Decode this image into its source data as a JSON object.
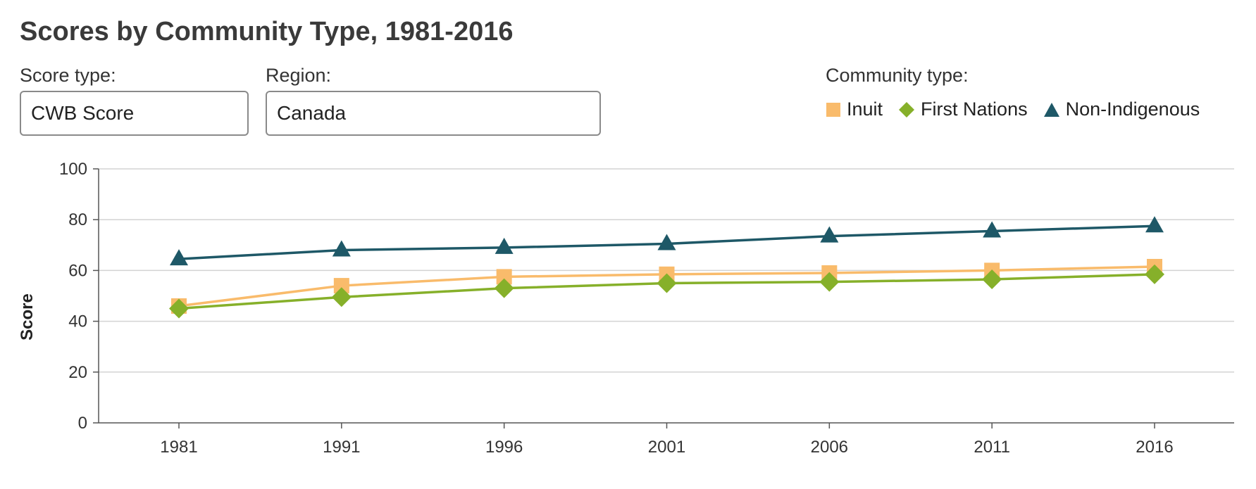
{
  "title": "Scores by Community Type, 1981-2016",
  "controls": {
    "score_type": {
      "label": "Score type:",
      "value": "CWB Score"
    },
    "region": {
      "label": "Region:",
      "value": "Canada"
    }
  },
  "legend": {
    "label": "Community type:"
  },
  "colors": {
    "Inuit": "#f9bb6b",
    "First Nations": "#86b02a",
    "Non-Indigenous": "#1e5867",
    "grid": "#d3d3d3",
    "axis": "#555555"
  },
  "chart_data": {
    "type": "line",
    "title": "Scores by Community Type, 1981-2016",
    "xlabel": "",
    "ylabel": "Score",
    "categories": [
      "1981",
      "1991",
      "1996",
      "2001",
      "2006",
      "2011",
      "2016"
    ],
    "ylim": [
      0,
      100
    ],
    "yticks": [
      0,
      20,
      40,
      60,
      80,
      100
    ],
    "grid": true,
    "legend_position": "top-right",
    "series": [
      {
        "name": "Inuit",
        "marker": "square",
        "values": [
          46,
          54,
          57.5,
          58.5,
          59,
          60,
          61.5
        ]
      },
      {
        "name": "First Nations",
        "marker": "diamond",
        "values": [
          45,
          49.5,
          53,
          55,
          55.5,
          56.5,
          58.5
        ]
      },
      {
        "name": "Non-Indigenous",
        "marker": "triangle",
        "values": [
          64.5,
          68,
          69,
          70.5,
          73.5,
          75.5,
          77.5
        ]
      }
    ]
  }
}
